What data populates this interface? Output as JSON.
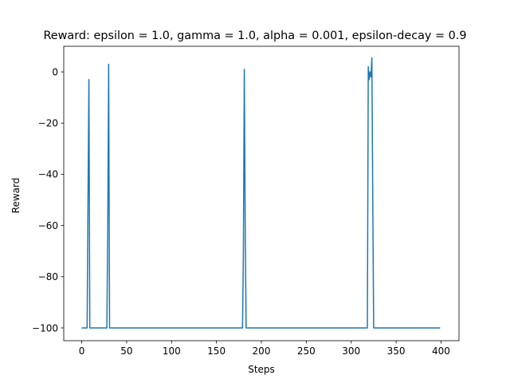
{
  "chart_data": {
    "type": "line",
    "title": "Reward: epsilon = 1.0, gamma = 1.0, alpha = 0.001, epsilon-decay = 0.9",
    "xlabel": "Steps",
    "ylabel": "Reward",
    "xlim": [
      -20,
      420
    ],
    "ylim": [
      -105,
      10
    ],
    "xticks": [
      0,
      50,
      100,
      150,
      200,
      250,
      300,
      350,
      400
    ],
    "yticks": [
      -100,
      -80,
      -60,
      -40,
      -20,
      0
    ],
    "grid": false,
    "legend": "none",
    "series": [
      {
        "color": "#1f77b4",
        "x": [
          0,
          5,
          6,
          7,
          8,
          9,
          10,
          28,
          29,
          30,
          31,
          179,
          180,
          181,
          182,
          183,
          318,
          319,
          320,
          321,
          322,
          323,
          324,
          325,
          399
        ],
        "y": [
          -100,
          -100,
          -100,
          -50,
          -3,
          -100,
          -100,
          -100,
          -60,
          3,
          -100,
          -100,
          -70,
          1,
          -60,
          -100,
          -100,
          2,
          -3,
          0,
          -2,
          5.5,
          -50,
          -100,
          -100
        ]
      }
    ]
  }
}
